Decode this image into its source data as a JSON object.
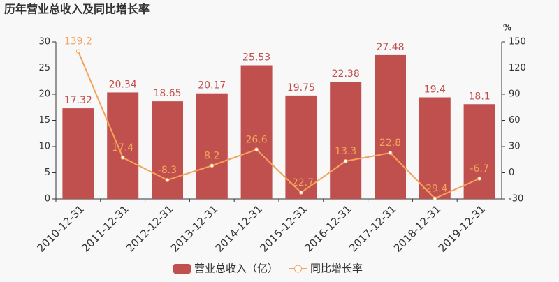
{
  "chart_data": {
    "type": "bar-line",
    "title": "历年营业总收入及同比增长率",
    "categories": [
      "2010-12-31",
      "2011-12-31",
      "2012-12-31",
      "2013-12-31",
      "2014-12-31",
      "2015-12-31",
      "2016-12-31",
      "2017-12-31",
      "2018-12-31",
      "2019-12-31"
    ],
    "series": [
      {
        "name": "营业总收入（亿）",
        "type": "bar",
        "color": "#c0504d",
        "values": [
          17.32,
          20.34,
          18.65,
          20.17,
          25.53,
          19.75,
          22.38,
          27.48,
          19.4,
          18.1
        ]
      },
      {
        "name": "同比增长率",
        "type": "line",
        "axis": "y2",
        "color": "#f3a35b",
        "values": [
          139.2,
          17.4,
          -8.3,
          8.2,
          26.6,
          -22.7,
          13.3,
          22.8,
          -29.4,
          -6.7
        ]
      }
    ],
    "ylim": [
      0,
      30
    ],
    "yticks": [
      0,
      5,
      10,
      15,
      20,
      25,
      30
    ],
    "y2lim": [
      -30,
      150
    ],
    "y2ticks": [
      -30,
      0,
      30,
      60,
      90,
      120,
      150
    ],
    "y2label": "%"
  }
}
